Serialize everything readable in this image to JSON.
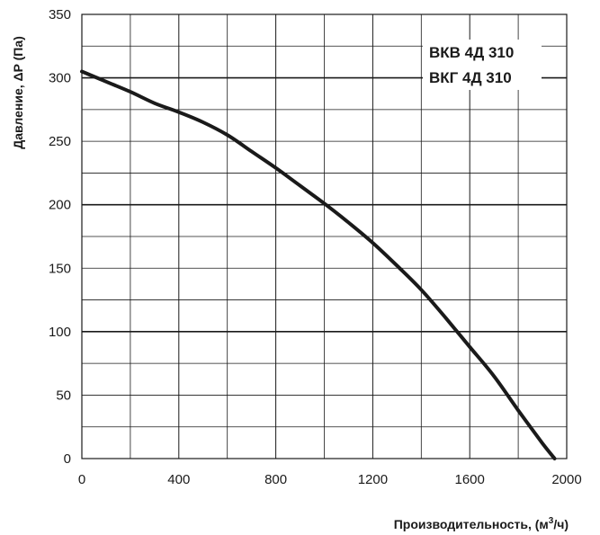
{
  "chart_data": {
    "type": "line",
    "labels": [
      "ВКВ 4Д 310",
      "ВКГ 4Д 310"
    ],
    "xlabel_main": "Производительность, (м",
    "xlabel_sup": "3",
    "xlabel_tail": "/ч)",
    "ylabel": "Давление, ΔP (Па)",
    "xlim": [
      0,
      2000
    ],
    "ylim": [
      0,
      350
    ],
    "x_ticks": [
      0,
      400,
      800,
      1200,
      1600,
      2000
    ],
    "y_ticks": [
      0,
      50,
      100,
      150,
      200,
      250,
      300,
      350
    ],
    "grid": true,
    "series": [
      {
        "x": [
          0,
          100,
          200,
          300,
          400,
          500,
          600,
          700,
          800,
          900,
          1000,
          1100,
          1200,
          1300,
          1400,
          1500,
          1600,
          1700,
          1800,
          1900,
          1950
        ],
        "y": [
          305,
          297,
          289,
          280,
          273,
          265,
          255,
          242,
          229,
          215,
          201,
          186,
          170,
          152,
          133,
          111,
          88,
          65,
          38,
          12,
          0
        ],
        "color": "#1a1a1a"
      }
    ]
  }
}
